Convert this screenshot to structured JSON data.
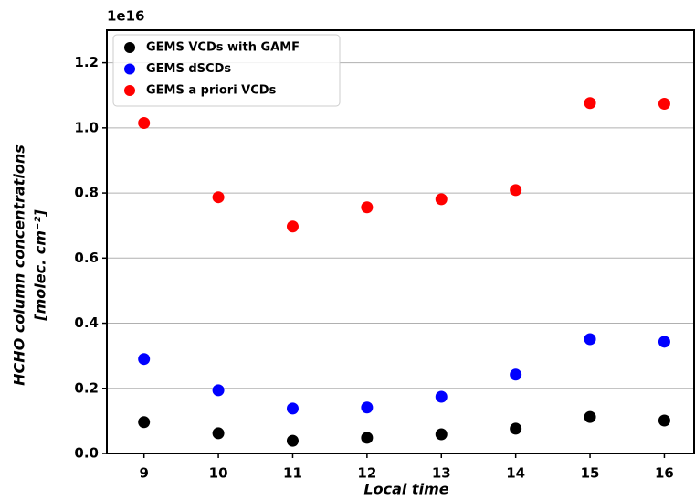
{
  "chart_data": {
    "type": "scatter",
    "offset_label": "1e16",
    "xlabel": "Local time",
    "ylabel": [
      "HCHO column concentrations",
      "[molec. cm⁻²]"
    ],
    "x": [
      9,
      10,
      11,
      12,
      13,
      14,
      15,
      16
    ],
    "series": [
      {
        "name": "GEMS VCDs with GAMF",
        "color": "#000000",
        "values": [
          0.096,
          0.062,
          0.039,
          0.048,
          0.059,
          0.076,
          0.112,
          0.101
        ]
      },
      {
        "name": "GEMS dSCDs",
        "color": "#0000ff",
        "values": [
          0.29,
          0.194,
          0.138,
          0.141,
          0.174,
          0.242,
          0.351,
          0.343
        ]
      },
      {
        "name": "GEMS a priori VCDs",
        "color": "#ff0000",
        "values": [
          1.015,
          0.787,
          0.697,
          0.756,
          0.781,
          0.809,
          1.076,
          1.074
        ]
      }
    ],
    "xlim": [
      8.5,
      16.4
    ],
    "xticks": [
      9,
      10,
      11,
      12,
      13,
      14,
      15,
      16
    ],
    "ylim": [
      0,
      1.3
    ],
    "yticks": [
      {
        "value": 0,
        "label": "0.0"
      },
      0.2,
      0.4,
      0.6,
      0.8,
      {
        "value": 1,
        "label": "1.0"
      },
      1.2
    ],
    "grid": "y",
    "legend": "upper left"
  }
}
